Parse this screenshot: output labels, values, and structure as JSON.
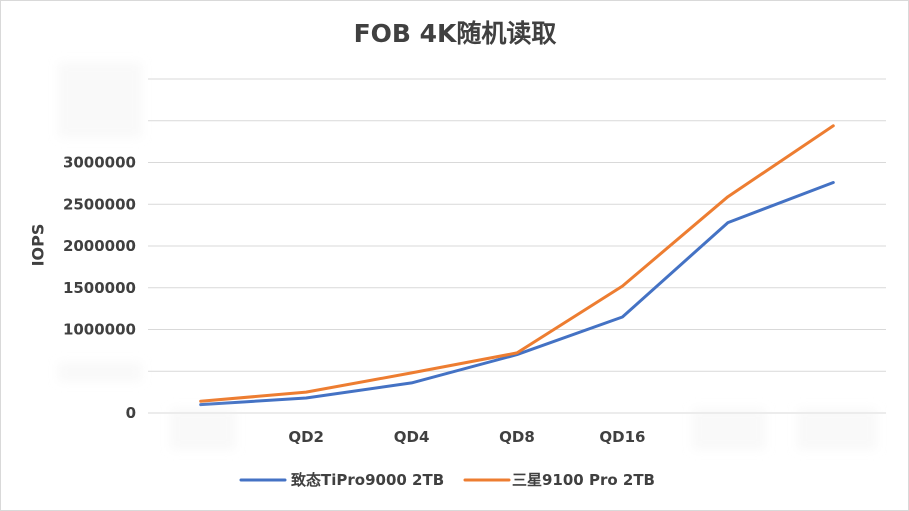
{
  "chart_data": {
    "type": "line",
    "title": "FOB 4K随机读取",
    "xlabel": "",
    "ylabel": "IOPS",
    "categories": [
      "",
      "QD2",
      "QD4",
      "QD8",
      "QD16",
      "",
      ""
    ],
    "ylim": [
      0,
      4000000
    ],
    "ytick_step": 500000,
    "ytick_labels": [
      "0",
      "",
      "1000000",
      "1500000",
      "2000000",
      "2500000",
      "3000000",
      "",
      ""
    ],
    "grid": true,
    "legend": "bottom",
    "series": [
      {
        "name": "致态TiPro9000 2TB",
        "color": "#4472C4",
        "values": [
          100000,
          180000,
          360000,
          700000,
          1150000,
          2280000,
          2760000
        ]
      },
      {
        "name": "三星9100 Pro 2TB",
        "color": "#ED7D31",
        "values": [
          140000,
          250000,
          480000,
          720000,
          1520000,
          2590000,
          3440000
        ]
      }
    ]
  }
}
